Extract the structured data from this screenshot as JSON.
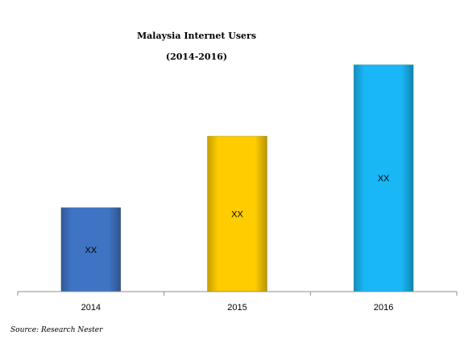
{
  "chart_data": {
    "type": "bar",
    "title": "Malaysia Internet Users",
    "subtitle": "(2014-2016)",
    "categories": [
      "2014",
      "2015",
      "2016"
    ],
    "values": [
      40,
      74,
      108
    ],
    "data_labels": [
      "XX",
      "XX",
      "XX"
    ],
    "ylim": [
      0,
      112
    ],
    "grid": false,
    "legend": "none",
    "colors": [
      "#3f74c4",
      "#ffcc00",
      "#19b7f5"
    ],
    "source": "Source: Research Nester"
  }
}
